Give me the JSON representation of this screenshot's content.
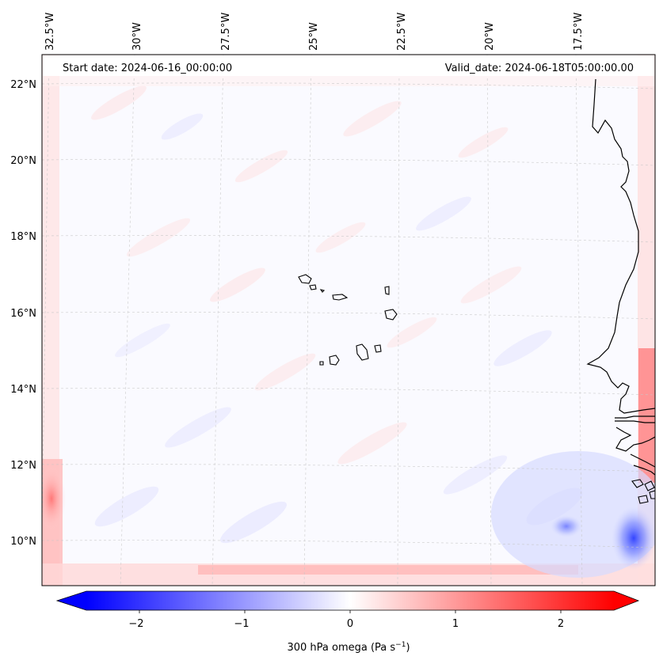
{
  "map": {
    "start_label": "Start date: 2024-06-16_00:00:00",
    "valid_label": "Valid_date: 2024-06-18T05:00:00.00",
    "lon_ticks": [
      "32.5°W",
      "30°W",
      "27.5°W",
      "25°W",
      "22.5°W",
      "20°W",
      "17.5°W"
    ],
    "lat_ticks": [
      "22°N",
      "20°N",
      "18°N",
      "16°N",
      "14°N",
      "12°N",
      "10°N"
    ],
    "colorbar": {
      "ticks": [
        "−2",
        "−1",
        "0",
        "1",
        "2"
      ],
      "label_main": "300 hPa omega (Pa s",
      "label_sup": "−1",
      "label_close": ")",
      "min": -2.5,
      "max": 2.5,
      "colormap": "bwr",
      "colors": {
        "low": "#0000ff",
        "mid": "#ffffff",
        "high": "#ff0000"
      }
    }
  }
}
